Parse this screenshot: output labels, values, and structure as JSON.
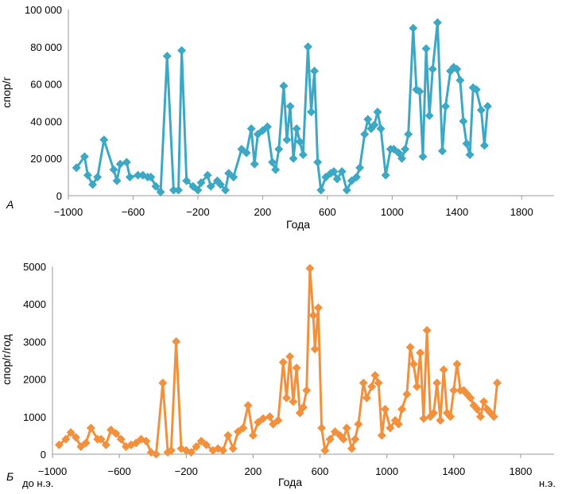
{
  "colors": {
    "series_a": "#3da8c4",
    "series_b": "#f2913d"
  },
  "chart_data": [
    {
      "type": "line",
      "panel_label": "А",
      "xlabel": "Года",
      "ylabel": "спор/г",
      "xlim": [
        -1000,
        2000
      ],
      "ylim": [
        0,
        100000
      ],
      "xticks": [
        -1000,
        -600,
        -200,
        200,
        600,
        1000,
        1400,
        1800
      ],
      "xtick_labels": [
        "−1000",
        "−600",
        "−200",
        "200",
        "600",
        "1000",
        "1400",
        "1800"
      ],
      "yticks": [
        0,
        20000,
        40000,
        60000,
        80000,
        100000
      ],
      "ytick_labels": [
        "0",
        "20 000",
        "40 000",
        "60 000",
        "80 000",
        "100 000"
      ],
      "series": [
        {
          "name": "А",
          "marker": "diamond",
          "points": [
            [
              -950,
              15000
            ],
            [
              -900,
              21000
            ],
            [
              -880,
              11000
            ],
            [
              -850,
              6000
            ],
            [
              -820,
              10000
            ],
            [
              -780,
              30000
            ],
            [
              -720,
              14000
            ],
            [
              -700,
              8000
            ],
            [
              -680,
              17000
            ],
            [
              -640,
              18000
            ],
            [
              -620,
              10000
            ],
            [
              -570,
              11000
            ],
            [
              -540,
              11000
            ],
            [
              -510,
              10000
            ],
            [
              -490,
              10000
            ],
            [
              -460,
              5000
            ],
            [
              -430,
              2000
            ],
            [
              -390,
              75000
            ],
            [
              -350,
              3000
            ],
            [
              -320,
              3000
            ],
            [
              -300,
              78000
            ],
            [
              -270,
              8000
            ],
            [
              -230,
              5000
            ],
            [
              -200,
              3000
            ],
            [
              -180,
              7000
            ],
            [
              -140,
              11000
            ],
            [
              -120,
              5000
            ],
            [
              -80,
              8000
            ],
            [
              -60,
              6000
            ],
            [
              -30,
              3000
            ],
            [
              -10,
              12000
            ],
            [
              20,
              10000
            ],
            [
              70,
              25000
            ],
            [
              100,
              23000
            ],
            [
              130,
              36000
            ],
            [
              150,
              17000
            ],
            [
              170,
              33000
            ],
            [
              200,
              35000
            ],
            [
              230,
              37000
            ],
            [
              260,
              18000
            ],
            [
              280,
              14000
            ],
            [
              300,
              25000
            ],
            [
              330,
              59000
            ],
            [
              350,
              30000
            ],
            [
              370,
              48000
            ],
            [
              390,
              20000
            ],
            [
              410,
              36000
            ],
            [
              430,
              29000
            ],
            [
              450,
              22000
            ],
            [
              480,
              80000
            ],
            [
              500,
              45000
            ],
            [
              520,
              67000
            ],
            [
              540,
              18000
            ],
            [
              560,
              3000
            ],
            [
              590,
              10000
            ],
            [
              620,
              12000
            ],
            [
              640,
              13000
            ],
            [
              660,
              9000
            ],
            [
              690,
              13000
            ],
            [
              720,
              3000
            ],
            [
              750,
              8000
            ],
            [
              780,
              10000
            ],
            [
              800,
              15000
            ],
            [
              830,
              33000
            ],
            [
              850,
              41000
            ],
            [
              870,
              36000
            ],
            [
              890,
              38000
            ],
            [
              910,
              45000
            ],
            [
              930,
              36000
            ],
            [
              960,
              11000
            ],
            [
              990,
              25000
            ],
            [
              1010,
              25000
            ],
            [
              1040,
              23000
            ],
            [
              1060,
              20000
            ],
            [
              1080,
              25000
            ],
            [
              1100,
              33000
            ],
            [
              1130,
              90000
            ],
            [
              1150,
              57000
            ],
            [
              1170,
              56000
            ],
            [
              1190,
              21000
            ],
            [
              1210,
              79000
            ],
            [
              1230,
              43000
            ],
            [
              1250,
              68000
            ],
            [
              1280,
              93000
            ],
            [
              1310,
              24000
            ],
            [
              1330,
              48000
            ],
            [
              1360,
              67000
            ],
            [
              1380,
              69000
            ],
            [
              1400,
              68000
            ],
            [
              1420,
              62000
            ],
            [
              1440,
              40000
            ],
            [
              1460,
              28000
            ],
            [
              1480,
              22000
            ],
            [
              1500,
              58000
            ],
            [
              1520,
              57000
            ],
            [
              1550,
              46000
            ],
            [
              1570,
              27000
            ],
            [
              1590,
              48000
            ]
          ]
        }
      ]
    },
    {
      "type": "line",
      "panel_label": "Б",
      "xlabel": "Года",
      "ylabel": "спор/г/год",
      "xlim": [
        -1000,
        2000
      ],
      "ylim": [
        0,
        5000
      ],
      "xticks": [
        -1000,
        -600,
        -200,
        200,
        600,
        1000,
        1400,
        1800
      ],
      "xtick_labels": [
        "−1000",
        "−600",
        "−200",
        "200",
        "600",
        "1000",
        "1400",
        "1800"
      ],
      "yticks": [
        0,
        1000,
        2000,
        3000,
        4000,
        5000
      ],
      "ytick_labels": [
        "0",
        "1000",
        "2000",
        "3000",
        "4000",
        "5000"
      ],
      "annotation_left": "до н.э.",
      "annotation_right": "н.э.",
      "series": [
        {
          "name": "Б",
          "marker": "diamond",
          "points": [
            [
              -960,
              250
            ],
            [
              -920,
              400
            ],
            [
              -890,
              580
            ],
            [
              -860,
              450
            ],
            [
              -830,
              200
            ],
            [
              -800,
              300
            ],
            [
              -770,
              700
            ],
            [
              -730,
              400
            ],
            [
              -710,
              400
            ],
            [
              -680,
              250
            ],
            [
              -650,
              650
            ],
            [
              -620,
              550
            ],
            [
              -590,
              400
            ],
            [
              -560,
              200
            ],
            [
              -530,
              250
            ],
            [
              -500,
              300
            ],
            [
              -470,
              400
            ],
            [
              -440,
              350
            ],
            [
              -410,
              50
            ],
            [
              -380,
              0
            ],
            [
              -340,
              1900
            ],
            [
              -310,
              50
            ],
            [
              -290,
              100
            ],
            [
              -260,
              3000
            ],
            [
              -230,
              150
            ],
            [
              -200,
              100
            ],
            [
              -170,
              50
            ],
            [
              -140,
              200
            ],
            [
              -110,
              350
            ],
            [
              -80,
              250
            ],
            [
              -40,
              100
            ],
            [
              -10,
              150
            ],
            [
              20,
              100
            ],
            [
              50,
              500
            ],
            [
              80,
              150
            ],
            [
              110,
              600
            ],
            [
              140,
              700
            ],
            [
              170,
              1300
            ],
            [
              200,
              500
            ],
            [
              230,
              850
            ],
            [
              260,
              950
            ],
            [
              300,
              1000
            ],
            [
              320,
              800
            ],
            [
              350,
              900
            ],
            [
              380,
              2450
            ],
            [
              400,
              1500
            ],
            [
              420,
              2600
            ],
            [
              440,
              1400
            ],
            [
              460,
              2300
            ],
            [
              480,
              1100
            ],
            [
              500,
              1250
            ],
            [
              520,
              1700
            ],
            [
              540,
              4950
            ],
            [
              560,
              3700
            ],
            [
              570,
              2800
            ],
            [
              590,
              3900
            ],
            [
              610,
              700
            ],
            [
              630,
              100
            ],
            [
              660,
              400
            ],
            [
              690,
              600
            ],
            [
              720,
              500
            ],
            [
              740,
              400
            ],
            [
              760,
              700
            ],
            [
              790,
              150
            ],
            [
              810,
              400
            ],
            [
              830,
              800
            ],
            [
              860,
              1900
            ],
            [
              880,
              1500
            ],
            [
              910,
              1800
            ],
            [
              930,
              2100
            ],
            [
              950,
              1900
            ],
            [
              970,
              500
            ],
            [
              990,
              1200
            ],
            [
              1020,
              700
            ],
            [
              1050,
              900
            ],
            [
              1070,
              800
            ],
            [
              1090,
              1200
            ],
            [
              1120,
              1600
            ],
            [
              1140,
              2850
            ],
            [
              1160,
              2400
            ],
            [
              1180,
              1800
            ],
            [
              1200,
              2700
            ],
            [
              1220,
              950
            ],
            [
              1240,
              3300
            ],
            [
              1260,
              1000
            ],
            [
              1280,
              1100
            ],
            [
              1300,
              1900
            ],
            [
              1320,
              900
            ],
            [
              1340,
              2250
            ],
            [
              1360,
              1100
            ],
            [
              1380,
              1000
            ],
            [
              1400,
              1700
            ],
            [
              1420,
              2400
            ],
            [
              1440,
              1700
            ],
            [
              1460,
              1700
            ],
            [
              1480,
              1600
            ],
            [
              1500,
              1500
            ],
            [
              1520,
              1300
            ],
            [
              1540,
              1200
            ],
            [
              1560,
              1000
            ],
            [
              1580,
              1400
            ],
            [
              1600,
              1200
            ],
            [
              1620,
              1100
            ],
            [
              1640,
              1000
            ],
            [
              1660,
              1900
            ]
          ]
        }
      ]
    }
  ]
}
